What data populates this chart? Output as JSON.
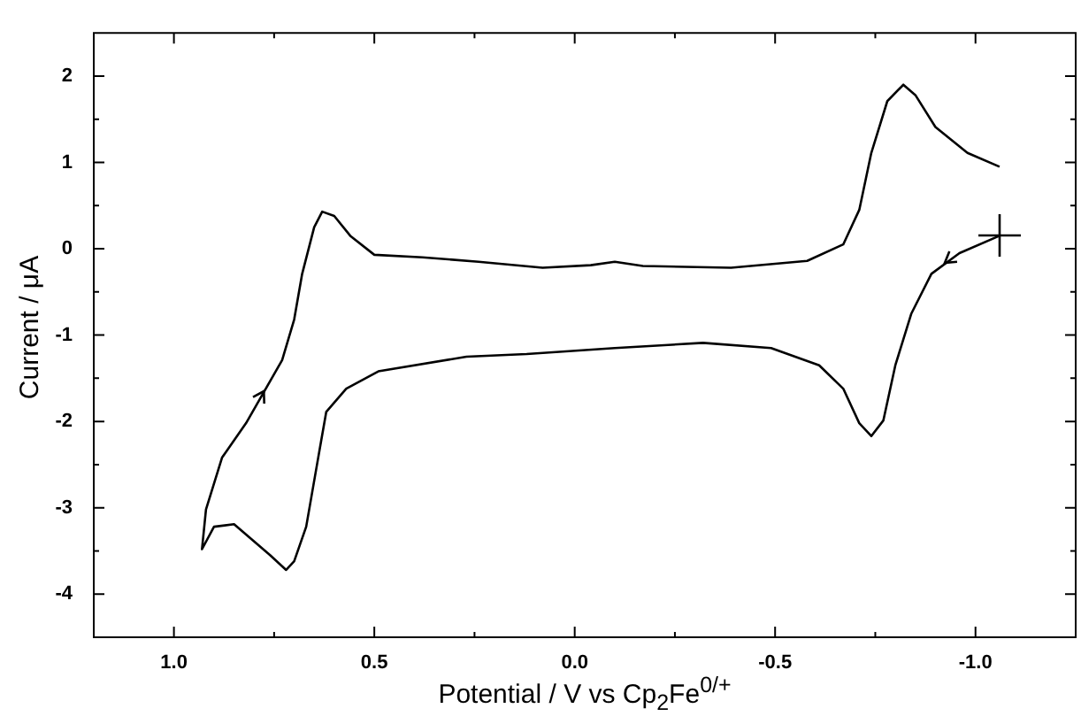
{
  "chart_data": {
    "type": "line",
    "xlabel": "Potential / V vs Cp$_{2}$Fe$^{0/+}$",
    "ylabel": "Current / μA",
    "xlim": [
      1.2,
      -1.25
    ],
    "ylim": [
      -4.5,
      2.5
    ],
    "xticks": [
      {
        "value": 1,
        "label": "1.0"
      },
      {
        "value": 0.75,
        "label": null
      },
      {
        "value": 0.5,
        "label": "0.5"
      },
      {
        "value": 0.25,
        "label": null
      },
      {
        "value": 0,
        "label": "0.0"
      },
      {
        "value": -0.25,
        "label": null
      },
      {
        "value": -0.5,
        "label": "-0.5"
      },
      {
        "value": -0.75,
        "label": null
      },
      {
        "value": -1,
        "label": "-1.0"
      }
    ],
    "yticks": [
      {
        "value": -4,
        "label": "-4"
      },
      {
        "value": -3.5,
        "label": null
      },
      {
        "value": -3,
        "label": "-3"
      },
      {
        "value": -2.5,
        "label": null
      },
      {
        "value": -2,
        "label": "-2"
      },
      {
        "value": -1.5,
        "label": null
      },
      {
        "value": -1,
        "label": "-1"
      },
      {
        "value": -0.5,
        "label": null
      },
      {
        "value": 0,
        "label": "0"
      },
      {
        "value": 0.5,
        "label": null
      },
      {
        "value": 1,
        "label": "1"
      },
      {
        "value": 1.5,
        "label": null
      },
      {
        "value": 2,
        "label": "2"
      }
    ],
    "grid": false,
    "legend": false,
    "marker": "none",
    "line_style": "solid",
    "series": [
      {
        "color": "#000000",
        "x": [
          -1.06,
          -0.96,
          -0.89,
          -0.84,
          -0.8,
          -0.77,
          -0.74,
          -0.71,
          -0.67,
          -0.61,
          -0.49,
          -0.32,
          -0.1,
          0.12,
          0.27,
          0.49,
          0.57,
          0.62,
          0.64,
          0.67,
          0.7,
          0.72,
          0.76,
          0.85,
          0.9,
          0.93,
          0.92,
          0.88,
          0.82,
          0.73,
          0.7,
          0.68,
          0.65,
          0.63,
          0.6,
          0.56,
          0.5,
          0.38,
          0.24,
          0.08,
          -0.04,
          -0.1,
          -0.17,
          -0.39,
          -0.58,
          -0.67,
          -0.71,
          -0.74,
          -0.78,
          -0.82,
          -0.85,
          -0.9,
          -0.98,
          -1.06
        ],
        "values": [
          0.15,
          -0.05,
          -0.29,
          -0.75,
          -1.35,
          -1.99,
          -2.17,
          -2.02,
          -1.62,
          -1.35,
          -1.15,
          -1.09,
          -1.15,
          -1.22,
          -1.25,
          -1.42,
          -1.62,
          -1.89,
          -2.42,
          -3.22,
          -3.62,
          -3.72,
          -3.55,
          -3.19,
          -3.22,
          -3.48,
          -3.02,
          -2.42,
          -2.02,
          -1.29,
          -0.82,
          -0.29,
          0.25,
          0.43,
          0.38,
          0.15,
          -0.07,
          -0.1,
          -0.15,
          -0.22,
          -0.19,
          -0.15,
          -0.2,
          -0.22,
          -0.14,
          0.05,
          0.45,
          1.11,
          1.71,
          1.9,
          1.78,
          1.41,
          1.11,
          0.95
        ]
      }
    ]
  }
}
